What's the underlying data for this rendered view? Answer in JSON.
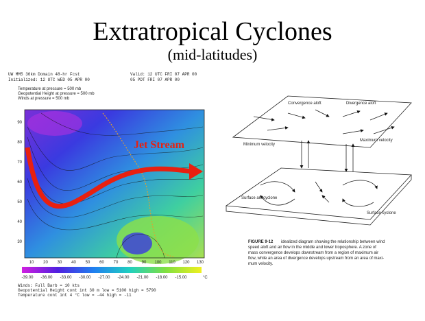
{
  "title": "Extratropical Cyclones",
  "subtitle": "(mid-latitudes)",
  "map": {
    "header_left": [
      "UW MM5 36km Domain  48-hr Fcst",
      "Initialized: 12 UTC WED 05 APR 00"
    ],
    "header_right": [
      "Valid: 12 UTC FRI 07 APR 00",
      "05 PDT FRI 07 APR 00"
    ],
    "fields": [
      "Temperature at pressure = 500 mb",
      "Geopotential Height at pressure = 500 mb",
      "Winds at pressure = 500 mb"
    ],
    "annotation": "Jet Stream",
    "left_labels": [
      "90",
      "80",
      "70",
      "60",
      "50",
      "40",
      "30"
    ],
    "bottom_labels": [
      "10",
      "20",
      "30",
      "40",
      "50",
      "60",
      "70",
      "80",
      "90",
      "100",
      "110",
      "120",
      "130"
    ],
    "colorbar_labels": [
      "-39.00",
      "-36.00",
      "-33.00",
      "-30.00",
      "-27.00",
      "-24.00",
      "-21.00",
      "-18.00",
      "-15.00"
    ],
    "colorbar_unit": "°C",
    "footer": [
      "Winds: Full Barb = 10 kts",
      "Geopotential Height   cont int  30 m    low = 5100    high = 5790",
      "Temperature            cont int  4 °C    low = -44     high = -11"
    ]
  },
  "diagram": {
    "labels": [
      "Convergence aloft",
      "Divergence aloft",
      "Minimum velocity",
      "Maximum velocity",
      "Surface anticyclone",
      "Surface cyclone"
    ],
    "caption_label": "FIGURE 9-12",
    "caption": [
      "idealized diagram showing the relationship between wind",
      "speed aloft and air flow in the middle and lower troposphere. A zone of",
      "mass convergence develops downstream from a region of maximum air",
      "flow, while an area of divergence develops upstream from an area of maxi-",
      "mum velocity."
    ]
  }
}
